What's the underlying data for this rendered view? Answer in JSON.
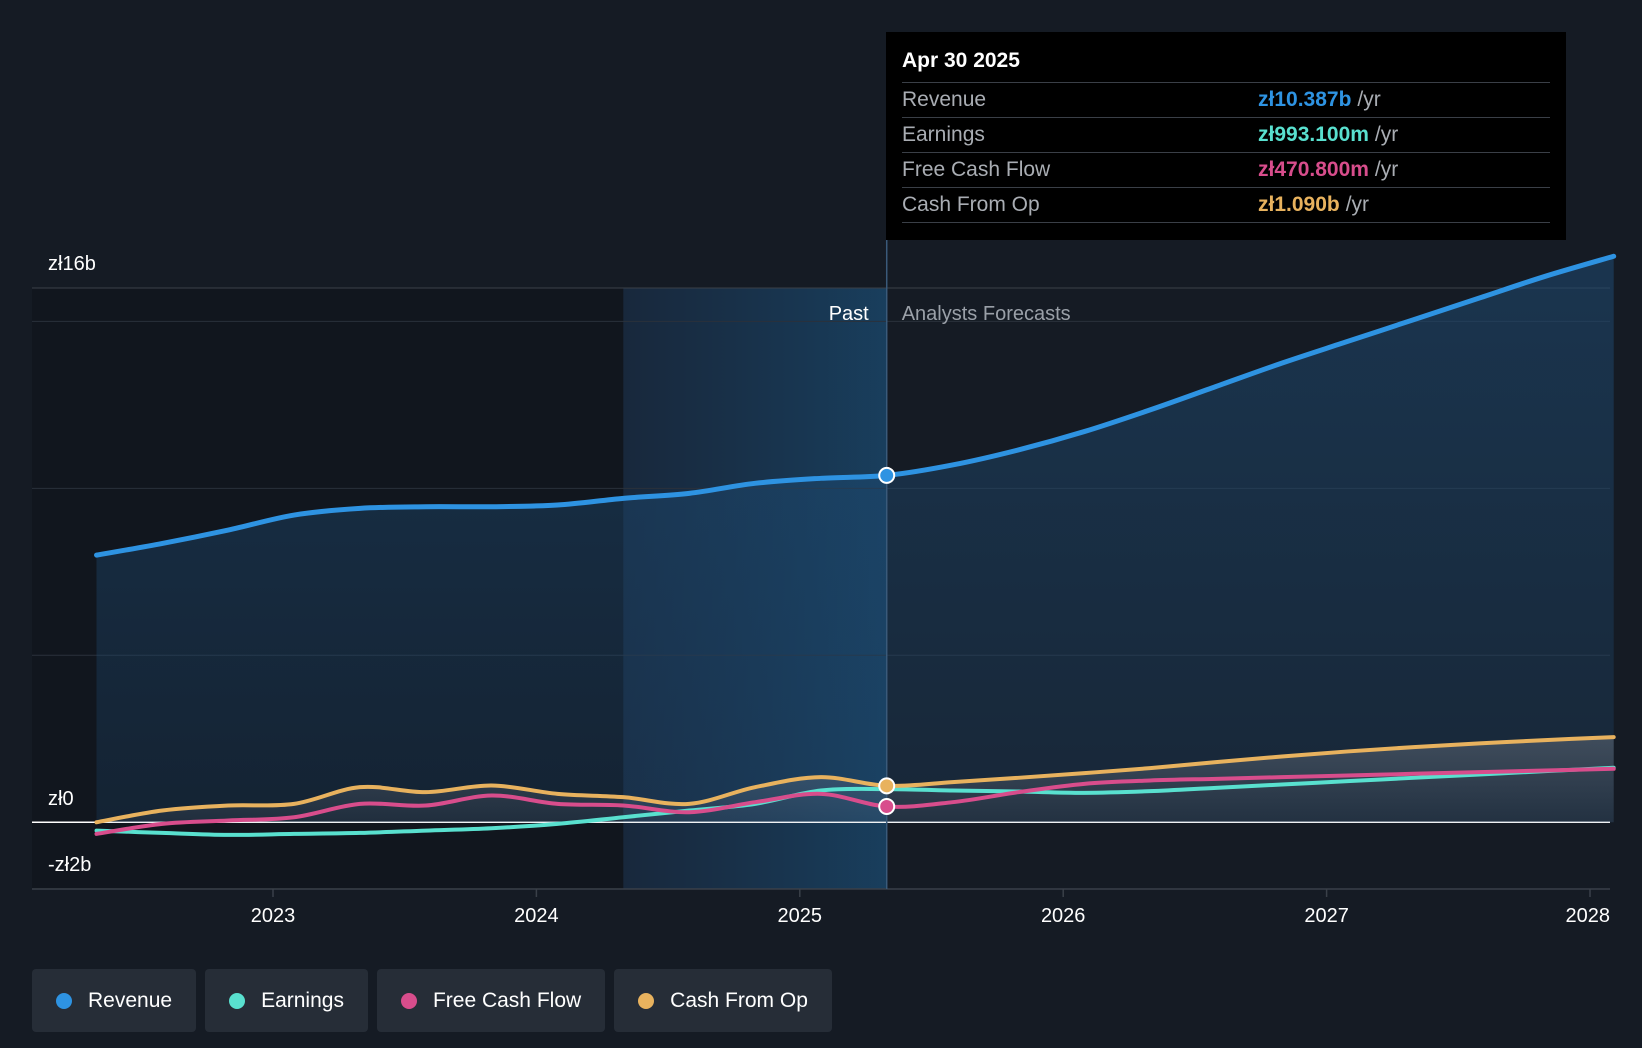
{
  "chart_data": {
    "type": "line",
    "y_tick_labels": [
      "zł16b",
      "zł0",
      "-zł2b"
    ],
    "ylim": [
      -2,
      16
    ],
    "y_unit": "b PLN",
    "x_ticks": [
      2023,
      2024,
      2025,
      2026,
      2027,
      2028
    ],
    "x_tick_labels": [
      "2023",
      "2024",
      "2025",
      "2026",
      "2027",
      "2028"
    ],
    "xlim": [
      2022.33,
      2028.09
    ],
    "past_label": "Past",
    "forecast_label": "Analysts Forecasts",
    "divider_x": 2025.33,
    "shaded_past_start": 2024.33,
    "grid": true,
    "legend_position": "bottom-left",
    "series": [
      {
        "name": "Revenue",
        "color": "#2e93e2",
        "points": [
          [
            2022.33,
            8.0
          ],
          [
            2022.58,
            8.35
          ],
          [
            2022.83,
            8.75
          ],
          [
            2023.08,
            9.2
          ],
          [
            2023.33,
            9.4
          ],
          [
            2023.58,
            9.45
          ],
          [
            2023.83,
            9.45
          ],
          [
            2024.08,
            9.5
          ],
          [
            2024.33,
            9.7
          ],
          [
            2024.58,
            9.85
          ],
          [
            2024.83,
            10.15
          ],
          [
            2025.08,
            10.3
          ],
          [
            2025.33,
            10.387
          ],
          [
            2025.58,
            10.7
          ],
          [
            2025.83,
            11.15
          ],
          [
            2026.08,
            11.7
          ],
          [
            2026.33,
            12.35
          ],
          [
            2026.58,
            13.05
          ],
          [
            2026.83,
            13.75
          ],
          [
            2027.08,
            14.4
          ],
          [
            2027.33,
            15.05
          ],
          [
            2027.58,
            15.7
          ],
          [
            2027.83,
            16.35
          ],
          [
            2028.09,
            16.95
          ]
        ]
      },
      {
        "name": "Earnings",
        "color": "#59e0cf",
        "points": [
          [
            2022.33,
            -0.25
          ],
          [
            2022.58,
            -0.32
          ],
          [
            2022.83,
            -0.38
          ],
          [
            2023.08,
            -0.35
          ],
          [
            2023.33,
            -0.32
          ],
          [
            2023.58,
            -0.25
          ],
          [
            2023.83,
            -0.18
          ],
          [
            2024.08,
            -0.05
          ],
          [
            2024.33,
            0.15
          ],
          [
            2024.58,
            0.35
          ],
          [
            2024.83,
            0.55
          ],
          [
            2025.08,
            0.95
          ],
          [
            2025.33,
            0.993
          ],
          [
            2025.58,
            0.95
          ],
          [
            2025.83,
            0.92
          ],
          [
            2026.08,
            0.88
          ],
          [
            2026.33,
            0.93
          ],
          [
            2026.58,
            1.03
          ],
          [
            2026.83,
            1.13
          ],
          [
            2027.08,
            1.23
          ],
          [
            2027.33,
            1.33
          ],
          [
            2027.58,
            1.43
          ],
          [
            2027.83,
            1.53
          ],
          [
            2028.09,
            1.63
          ]
        ]
      },
      {
        "name": "Free Cash Flow",
        "color": "#d84d8c",
        "points": [
          [
            2022.33,
            -0.35
          ],
          [
            2022.58,
            -0.05
          ],
          [
            2022.83,
            0.05
          ],
          [
            2023.08,
            0.15
          ],
          [
            2023.33,
            0.55
          ],
          [
            2023.58,
            0.5
          ],
          [
            2023.83,
            0.8
          ],
          [
            2024.08,
            0.55
          ],
          [
            2024.33,
            0.5
          ],
          [
            2024.58,
            0.3
          ],
          [
            2024.83,
            0.6
          ],
          [
            2025.08,
            0.85
          ],
          [
            2025.33,
            0.4708
          ],
          [
            2025.58,
            0.6
          ],
          [
            2025.83,
            0.9
          ],
          [
            2026.08,
            1.15
          ],
          [
            2026.33,
            1.25
          ],
          [
            2026.58,
            1.3
          ],
          [
            2026.83,
            1.35
          ],
          [
            2027.08,
            1.4
          ],
          [
            2027.33,
            1.45
          ],
          [
            2027.58,
            1.5
          ],
          [
            2027.83,
            1.55
          ],
          [
            2028.09,
            1.6
          ]
        ]
      },
      {
        "name": "Cash From Op",
        "color": "#e8b25e",
        "points": [
          [
            2022.33,
            0.0
          ],
          [
            2022.58,
            0.35
          ],
          [
            2022.83,
            0.5
          ],
          [
            2023.08,
            0.55
          ],
          [
            2023.33,
            1.05
          ],
          [
            2023.58,
            0.9
          ],
          [
            2023.83,
            1.1
          ],
          [
            2024.08,
            0.85
          ],
          [
            2024.33,
            0.75
          ],
          [
            2024.58,
            0.55
          ],
          [
            2024.83,
            1.05
          ],
          [
            2025.08,
            1.35
          ],
          [
            2025.33,
            1.09
          ],
          [
            2025.58,
            1.2
          ],
          [
            2025.83,
            1.33
          ],
          [
            2026.08,
            1.47
          ],
          [
            2026.33,
            1.62
          ],
          [
            2026.58,
            1.8
          ],
          [
            2026.83,
            1.97
          ],
          [
            2027.08,
            2.12
          ],
          [
            2027.33,
            2.25
          ],
          [
            2027.58,
            2.36
          ],
          [
            2027.83,
            2.46
          ],
          [
            2028.09,
            2.55
          ]
        ]
      }
    ]
  },
  "tooltip": {
    "date": "Apr 30 2025",
    "rows": [
      {
        "label": "Revenue",
        "value": "zł10.387b",
        "unit": "/yr",
        "color": "#2e93e2"
      },
      {
        "label": "Earnings",
        "value": "zł993.100m",
        "unit": "/yr",
        "color": "#59e0cf"
      },
      {
        "label": "Free Cash Flow",
        "value": "zł470.800m",
        "unit": "/yr",
        "color": "#d84d8c"
      },
      {
        "label": "Cash From Op",
        "value": "zł1.090b",
        "unit": "/yr",
        "color": "#e8b25e"
      }
    ]
  },
  "legend": [
    {
      "label": "Revenue",
      "color": "#2e93e2"
    },
    {
      "label": "Earnings",
      "color": "#59e0cf"
    },
    {
      "label": "Free Cash Flow",
      "color": "#d84d8c"
    },
    {
      "label": "Cash From Op",
      "color": "#e8b25e"
    }
  ]
}
